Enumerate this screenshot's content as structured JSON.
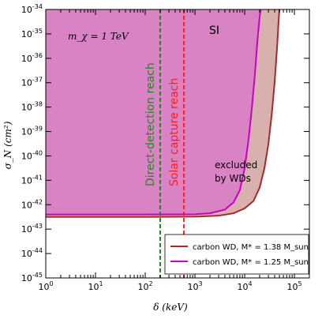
{
  "chart_data": {
    "type": "line",
    "title": "",
    "xlabel": "δ (keV)",
    "ylabel": "σ_N (cm²)",
    "xscale": "log",
    "yscale": "log",
    "xlim": [
      1,
      200000
    ],
    "ylim": [
      1e-45,
      1e-34
    ],
    "x_ticks": [
      {
        "base": "10",
        "exp": "0"
      },
      {
        "base": "10",
        "exp": "1"
      },
      {
        "base": "10",
        "exp": "2"
      },
      {
        "base": "10",
        "exp": "3"
      },
      {
        "base": "10",
        "exp": "4"
      },
      {
        "base": "10",
        "exp": "5"
      }
    ],
    "y_ticks": [
      {
        "base": "10",
        "exp": "-34"
      },
      {
        "base": "10",
        "exp": "-35"
      },
      {
        "base": "10",
        "exp": "-36"
      },
      {
        "base": "10",
        "exp": "-37"
      },
      {
        "base": "10",
        "exp": "-38"
      },
      {
        "base": "10",
        "exp": "-39"
      },
      {
        "base": "10",
        "exp": "-40"
      },
      {
        "base": "10",
        "exp": "-41"
      },
      {
        "base": "10",
        "exp": "-42"
      },
      {
        "base": "10",
        "exp": "-43"
      },
      {
        "base": "10",
        "exp": "-44"
      },
      {
        "base": "10",
        "exp": "-45"
      }
    ],
    "series": [
      {
        "name": "carbon WD, M* = 1.38 M_sun",
        "color": "#a52a2a",
        "fill": "#d8b0ae",
        "x": [
          1,
          10,
          100,
          1000,
          3000,
          6000,
          10000,
          15000,
          20000,
          25000,
          30000,
          35000,
          40000,
          45000,
          48000,
          50000
        ],
        "y_exp": [
          -42.5,
          -42.5,
          -42.5,
          -42.49,
          -42.45,
          -42.35,
          -42.15,
          -41.85,
          -41.3,
          -40.5,
          -39.5,
          -38.3,
          -37.0,
          -35.5,
          -34.5,
          -34.0
        ]
      },
      {
        "name": "carbon WD, M* = 1.25 M_sun",
        "color": "#c800c8",
        "fill": "#d982c4",
        "x": [
          1,
          10,
          100,
          1000,
          2000,
          4000,
          6000,
          8000,
          10000,
          12000,
          14000,
          16000,
          18000,
          20000,
          21000
        ],
        "y_exp": [
          -42.4,
          -42.4,
          -42.4,
          -42.39,
          -42.35,
          -42.2,
          -41.9,
          -41.4,
          -40.5,
          -39.3,
          -38.0,
          -36.7,
          -35.3,
          -34.3,
          -34.0
        ]
      }
    ],
    "vlines": [
      {
        "x": 200,
        "color": "#1f8a1f",
        "label": "Direct-detection reach"
      },
      {
        "x": 600,
        "color": "#ff2020",
        "label": "Solar capture reach"
      }
    ],
    "annotations": {
      "mass": "m_χ = 1 TeV",
      "si": "SI",
      "excluded_line1": "excluded",
      "excluded_line2": "by WDs"
    },
    "legend_position": "lower-right",
    "grid": false
  }
}
